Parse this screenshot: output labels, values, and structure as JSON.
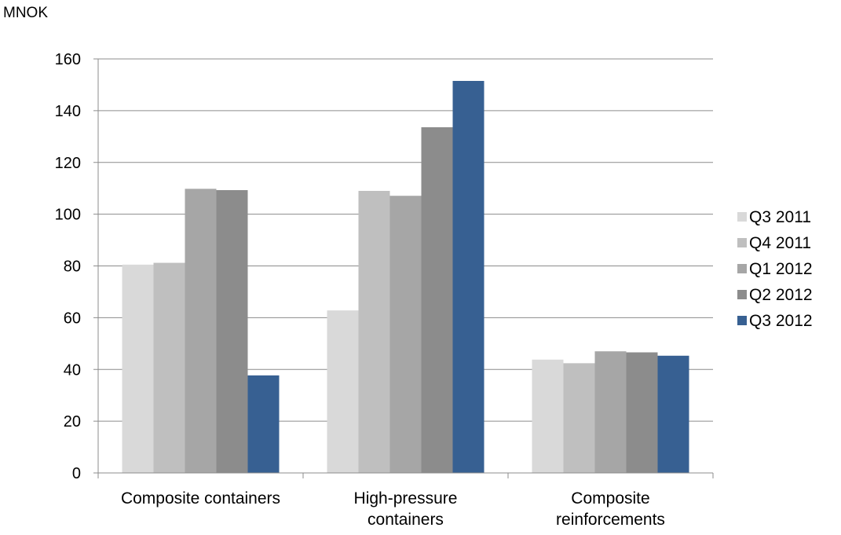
{
  "chart_data": {
    "type": "bar",
    "ylabel": "MNOK",
    "ylim": [
      0,
      160
    ],
    "ytick_step": 20,
    "grid": true,
    "legend_position": "right",
    "categories": [
      [
        "Composite containers"
      ],
      [
        "High-pressure",
        "containers"
      ],
      [
        "Composite",
        "reinforcements"
      ]
    ],
    "series": [
      {
        "name": "Q3 2011",
        "color": "#d9d9d9",
        "values": [
          80.5,
          62.8,
          43.8
        ]
      },
      {
        "name": "Q4 2011",
        "color": "#bfbfbf",
        "values": [
          81.2,
          109.0,
          42.4
        ]
      },
      {
        "name": "Q1 2012",
        "color": "#a6a6a6",
        "values": [
          109.8,
          107.1,
          47.0
        ]
      },
      {
        "name": "Q2 2012",
        "color": "#8c8c8c",
        "values": [
          109.3,
          133.6,
          46.6
        ]
      },
      {
        "name": "Q3 2012",
        "color": "#376092",
        "values": [
          37.7,
          151.5,
          45.3
        ]
      }
    ]
  }
}
